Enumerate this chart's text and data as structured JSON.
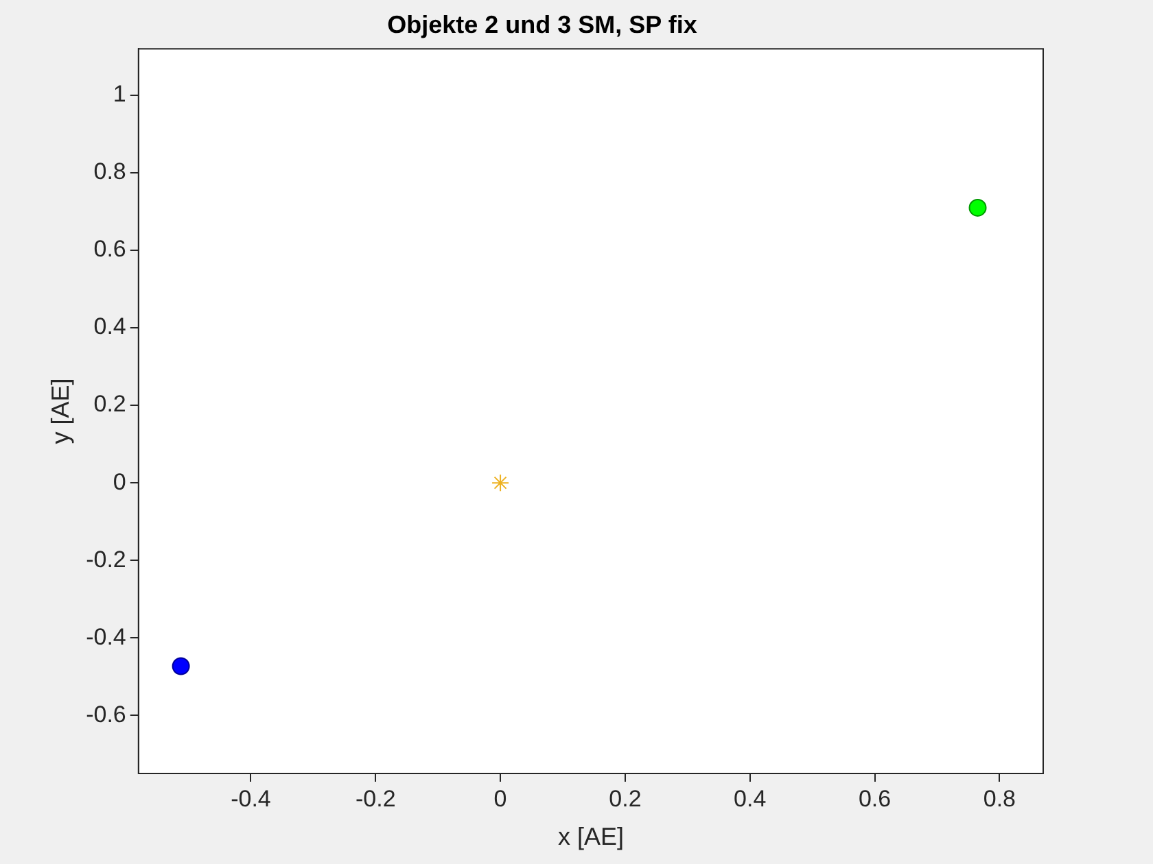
{
  "chart_data": {
    "type": "scatter",
    "title": "Objekte 2 und 3 SM, SP fix",
    "xlabel": "x [AE]",
    "ylabel": "y [AE]",
    "series": [
      {
        "color": "#0000ff",
        "x": [
          -0.512
        ],
        "values": [
          -0.473
        ],
        "marker": "circle"
      },
      {
        "color": "#00ff00",
        "x": [
          0.765
        ],
        "values": [
          0.71
        ],
        "marker": "circle"
      },
      {
        "color": "#edb120",
        "x": [
          0
        ],
        "values": [
          0
        ],
        "marker": "cross"
      }
    ],
    "xlim": [
      -0.58,
      0.87
    ],
    "ylim": [
      -0.75,
      1.12
    ],
    "xticks": [
      -0.4,
      -0.2,
      0,
      0.2,
      0.4,
      0.6,
      0.8
    ],
    "yticks": [
      -0.6,
      -0.4,
      -0.2,
      0,
      0.2,
      0.4,
      0.6,
      0.8,
      1
    ],
    "grid": false,
    "legend": false
  }
}
